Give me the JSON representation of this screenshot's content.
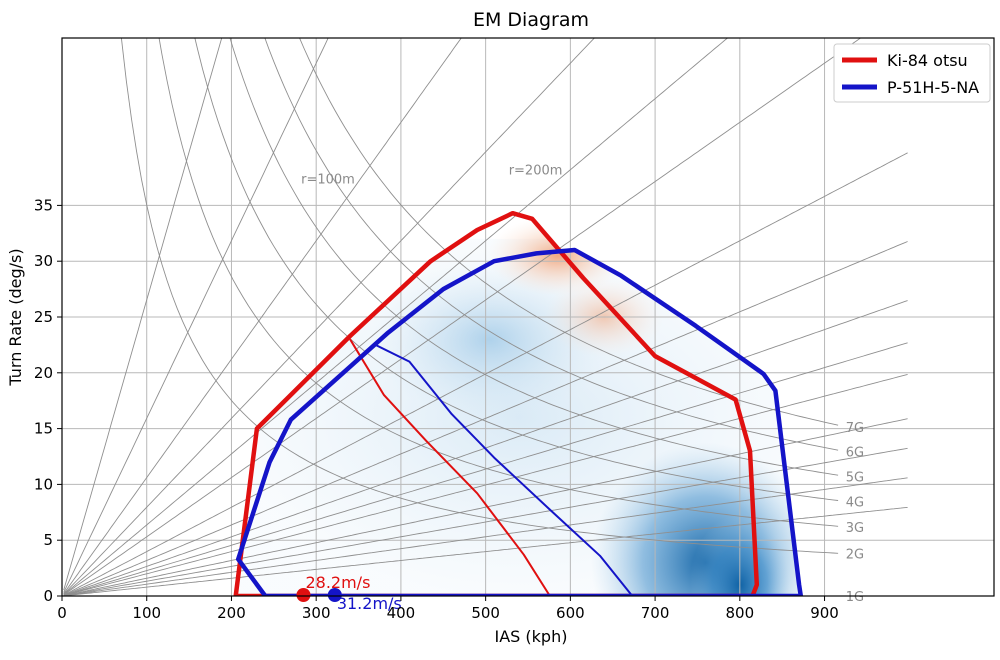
{
  "chart_data": {
    "type": "line",
    "title": "EM Diagram",
    "xlabel": "IAS (kph)",
    "ylabel": "Turn Rate (deg/s)",
    "xlim": [
      0,
      1100
    ],
    "ylim": [
      0,
      50
    ],
    "x_ticks": [
      0,
      100,
      200,
      300,
      400,
      500,
      600,
      700,
      800,
      900
    ],
    "y_ticks": [
      0,
      5,
      10,
      15,
      20,
      25,
      30,
      35
    ],
    "grid": true,
    "legend": "top-right",
    "radius_lines": [
      {
        "label": "r=100m",
        "r": 100
      },
      {
        "label": "r=200m",
        "r": 200
      }
    ],
    "radius_curves_m": [
      60,
      100,
      150,
      200,
      250,
      300,
      400,
      500,
      600,
      700,
      800,
      1000,
      1200,
      1500,
      2000
    ],
    "g_lines": [
      {
        "label": "1G",
        "g": 1
      },
      {
        "label": "2G",
        "g": 2
      },
      {
        "label": "3G",
        "g": 3
      },
      {
        "label": "4G",
        "g": 4
      },
      {
        "label": "5G",
        "g": 5
      },
      {
        "label": "6G",
        "g": 6
      },
      {
        "label": "7G",
        "g": 7
      }
    ],
    "series": [
      {
        "name": "Ki-84 otsu",
        "color": "#e01010",
        "envelope": [
          [
            205,
            0
          ],
          [
            230,
            15
          ],
          [
            340,
            23.3
          ],
          [
            435,
            30
          ],
          [
            490,
            32.8
          ],
          [
            532,
            34.3
          ],
          [
            555,
            33.8
          ],
          [
            615,
            28.5
          ],
          [
            700,
            21.5
          ],
          [
            795,
            17.6
          ],
          [
            812,
            13
          ],
          [
            820,
            1
          ],
          [
            815,
            0
          ],
          [
            205,
            0
          ]
        ],
        "sustained": [
          [
            340,
            23
          ],
          [
            380,
            18
          ],
          [
            430,
            13.9
          ],
          [
            490,
            9.2
          ],
          [
            545,
            3.7
          ],
          [
            575,
            0.1
          ]
        ],
        "min_speed": {
          "x": 285,
          "y": 0,
          "label": "28.2m/s"
        }
      },
      {
        "name": "P-51H-5-NA",
        "color": "#1414c8",
        "envelope": [
          [
            240,
            0
          ],
          [
            208,
            3.3
          ],
          [
            245,
            12
          ],
          [
            270,
            15.8
          ],
          [
            385,
            23.6
          ],
          [
            450,
            27.5
          ],
          [
            510,
            30
          ],
          [
            560,
            30.7
          ],
          [
            605,
            31
          ],
          [
            660,
            28.7
          ],
          [
            748,
            24.2
          ],
          [
            828,
            19.9
          ],
          [
            842,
            18.4
          ],
          [
            870,
            1
          ],
          [
            872,
            0
          ],
          [
            240,
            0
          ]
        ],
        "sustained": [
          [
            370,
            22.5
          ],
          [
            410,
            21
          ],
          [
            460,
            16.3
          ],
          [
            510,
            12.4
          ],
          [
            575,
            7.8
          ],
          [
            635,
            3.6
          ],
          [
            672,
            0.1
          ]
        ],
        "min_speed": {
          "x": 322,
          "y": 0,
          "label": "31.2m/s"
        }
      }
    ]
  }
}
